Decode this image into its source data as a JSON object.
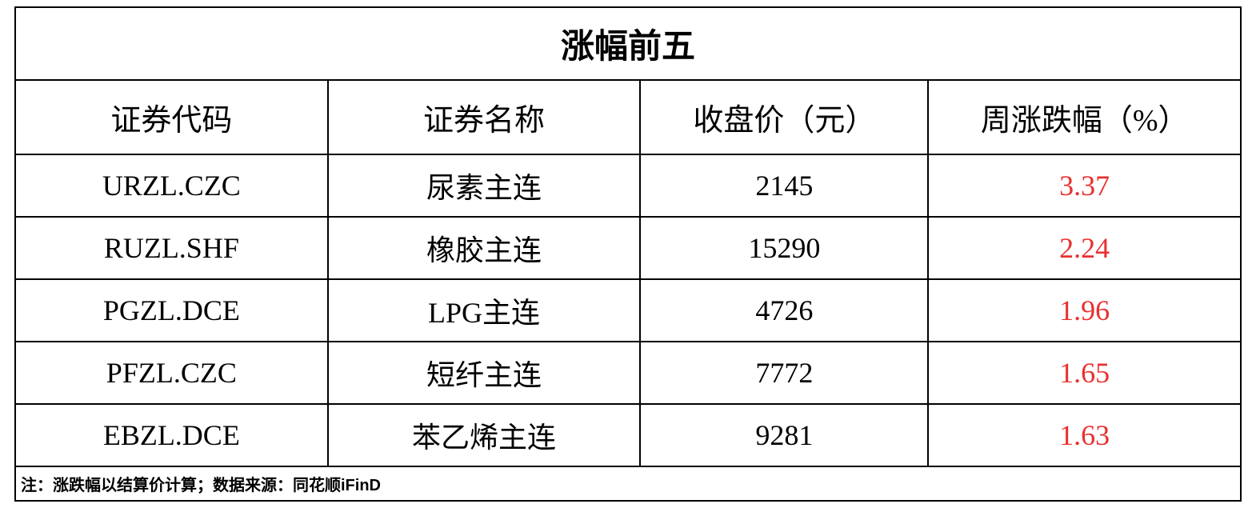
{
  "table": {
    "type": "table",
    "title": "涨幅前五",
    "title_fontsize": 42,
    "title_fontweight": "bold",
    "header_fontsize": 38,
    "data_fontsize": 36,
    "footnote_fontsize": 20,
    "border_color": "#000000",
    "background_color": "#ffffff",
    "text_color": "#000000",
    "change_color": "#e93030",
    "columns": [
      {
        "key": "code",
        "label": "证券代码",
        "width_pct": 25.5,
        "align": "center"
      },
      {
        "key": "name",
        "label": "证券名称",
        "width_pct": 25.5,
        "align": "center"
      },
      {
        "key": "price",
        "label": "收盘价（元）",
        "width_pct": 23.5,
        "align": "center"
      },
      {
        "key": "change",
        "label": "周涨跌幅（%）",
        "width_pct": 25.5,
        "align": "center"
      }
    ],
    "rows": [
      {
        "code": "URZL.CZC",
        "name": "尿素主连",
        "price": "2145",
        "change": "3.37"
      },
      {
        "code": "RUZL.SHF",
        "name": "橡胶主连",
        "price": "15290",
        "change": "2.24"
      },
      {
        "code": "PGZL.DCE",
        "name": "LPG主连",
        "price": "4726",
        "change": "1.96"
      },
      {
        "code": "PFZL.CZC",
        "name": "短纤主连",
        "price": "7772",
        "change": "1.65"
      },
      {
        "code": "EBZL.DCE",
        "name": "苯乙烯主连",
        "price": "9281",
        "change": "1.63"
      }
    ],
    "footnote": "注：涨跌幅以结算价计算；数据来源：同花顺iFinD"
  }
}
